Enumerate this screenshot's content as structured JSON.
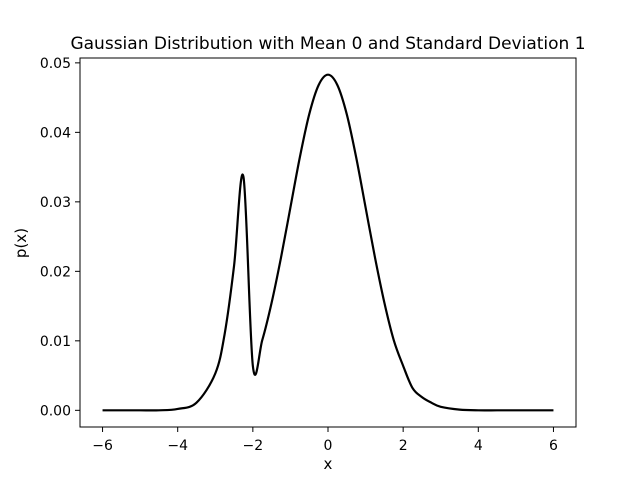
{
  "chart_data": {
    "type": "line",
    "title": "Gaussian Distribution with Mean 0 and Standard Deviation 1",
    "xlabel": "x",
    "ylabel": "p(x)",
    "xlim": [
      -6.6,
      6.6
    ],
    "ylim": [
      -0.0024,
      0.0507
    ],
    "x_ticks": [
      -6,
      -4,
      -2,
      0,
      2,
      4,
      6
    ],
    "x_tick_labels": [
      "−6",
      "−4",
      "−2",
      "0",
      "2",
      "4",
      "6"
    ],
    "y_ticks": [
      0.0,
      0.01,
      0.02,
      0.03,
      0.04,
      0.05
    ],
    "y_tick_labels": [
      "0.00",
      "0.01",
      "0.02",
      "0.03",
      "0.04",
      "0.05"
    ],
    "grid": false,
    "series": [
      {
        "color": "#000000",
        "x": [
          -6.0,
          -5.5,
          -5.0,
          -4.5,
          -4.0,
          -3.5,
          -3.0,
          -2.75,
          -2.5,
          -2.25,
          -2.0,
          -1.75,
          -1.5,
          -1.25,
          -1.0,
          -0.75,
          -0.5,
          -0.25,
          0.0,
          0.25,
          0.5,
          0.75,
          1.0,
          1.25,
          1.5,
          1.75,
          2.0,
          2.25,
          2.5,
          2.75,
          3.0,
          3.5,
          4.0,
          4.5,
          5.0,
          5.5,
          6.0
        ],
        "y": [
          0.0,
          0.0,
          0.0,
          0.0,
          0.0002,
          0.0011,
          0.0053,
          0.011,
          0.0208,
          0.0336,
          0.0064,
          0.0101,
          0.0155,
          0.022,
          0.0292,
          0.0364,
          0.0426,
          0.0468,
          0.0483,
          0.0468,
          0.0426,
          0.0364,
          0.0292,
          0.022,
          0.0155,
          0.0101,
          0.0064,
          0.0032,
          0.0019,
          0.0011,
          0.0005,
          0.0001,
          0.0,
          0.0,
          0.0,
          0.0,
          0.0
        ]
      }
    ]
  }
}
